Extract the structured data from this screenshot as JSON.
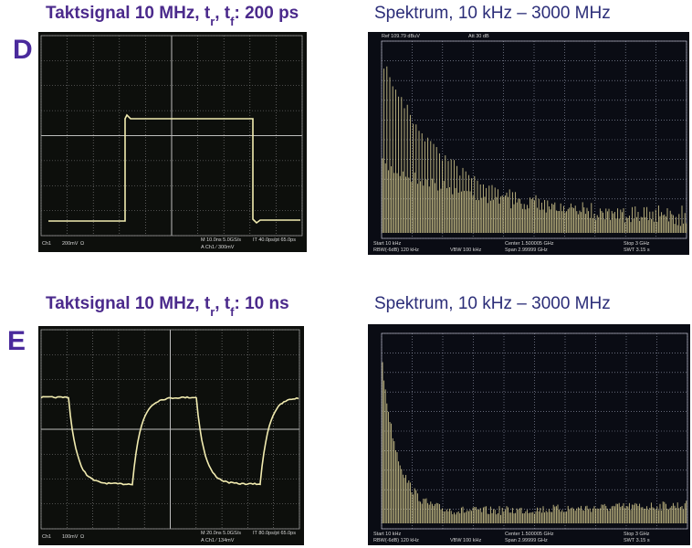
{
  "slides": [
    {
      "label": "D",
      "title": {
        "text": "Taktsignal 10 MHz, t",
        "sub1": "r",
        "sep": ", t",
        "sub2": "f",
        "rest": ": 200 ps"
      },
      "spectrum_title": "Spektrum, 10 kHz – 3000 MHz",
      "scope": {
        "channel": "Ch1",
        "volts": "200mV",
        "coupling": "Ω",
        "timebase": "M 10.0ns 5.0GS/s",
        "trigger": "A Ch1 ⁄ 300mV",
        "record": "IT 40.0ps/pt 65.0ps"
      },
      "analyzer": {
        "ref": "Ref 109.79 dBuV",
        "att": "Att 30 dB",
        "start": "Start 10 kHz",
        "center": "Center 1.500005 GHz",
        "stop": "Stop 3 GHz",
        "rbw": "RBW(-6dB) 120 kHz",
        "vbw": "VBW 100 kHz",
        "span": "Span 2.99999 GHz",
        "swt": "SWT 3.15 s"
      }
    },
    {
      "label": "E",
      "title": {
        "text": "Taktsignal 10 MHz, t",
        "sub1": "r",
        "sep": ", t",
        "sub2": "f",
        "rest": ": 10 ns"
      },
      "spectrum_title": "Spektrum, 10 kHz – 3000 MHz",
      "scope": {
        "channel": "Ch1",
        "volts": "100mV",
        "coupling": "Ω",
        "timebase": "M 20.0ns 5.0GS/s",
        "trigger": "A Ch1 ⁄ 134mV",
        "record": "IT 80.0ps/pt 65.0ps"
      },
      "analyzer": {
        "start": "Start 10 kHz",
        "center": "Center 1.500005 GHz",
        "stop": "Stop 3 GHz",
        "rbw": "RBW(-6dB) 120 kHz",
        "vbw": "VBW 100 kHz",
        "span": "Span 2.99999 GHz",
        "swt": "SWT 3.15 s"
      }
    }
  ]
}
